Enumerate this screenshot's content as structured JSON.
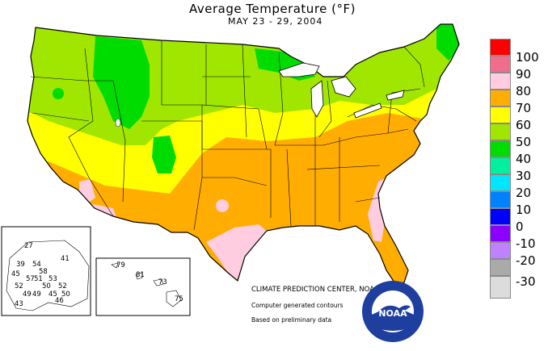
{
  "map": {
    "title": "Average Temperature (°F)",
    "subtitle": "MAY 23 - 29, 2004"
  },
  "legend": {
    "items": [
      {
        "label": "100",
        "color": "#ff0000"
      },
      {
        "label": "90",
        "color": "#f06e8c"
      },
      {
        "label": "80",
        "color": "#ffcce0"
      },
      {
        "label": "70",
        "color": "#ffad00"
      },
      {
        "label": "60",
        "color": "#ffff00"
      },
      {
        "label": "50",
        "color": "#a0e600"
      },
      {
        "label": "40",
        "color": "#00dc00"
      },
      {
        "label": "30",
        "color": "#00f0a0"
      },
      {
        "label": "20",
        "color": "#00e6ff"
      },
      {
        "label": "10",
        "color": "#0082ff"
      },
      {
        "label": "0",
        "color": "#0000ff"
      },
      {
        "label": "-10",
        "color": "#8c00ff"
      },
      {
        "label": "-20",
        "color": "#be82ff"
      },
      {
        "label": "-30",
        "color": "#aaaaaa"
      }
    ],
    "extra_color": "#dcdcdc"
  },
  "alaska_inset": {
    "values": [
      "27",
      "41",
      "39",
      "54",
      "58",
      "45",
      "51",
      "57",
      "53",
      "52",
      "50",
      "49",
      "45",
      "52",
      "43",
      "49",
      "46",
      "50"
    ]
  },
  "hawaii_inset": {
    "values": [
      "79",
      "81",
      "73",
      "75"
    ]
  },
  "credits": {
    "center": "CLIMATE PREDICTION CENTER, NOAA",
    "contours": "Computer generated contours",
    "data": "Based on preliminary data"
  },
  "logo": {
    "text": "NOAA",
    "icon": "noaa-logo-icon"
  }
}
